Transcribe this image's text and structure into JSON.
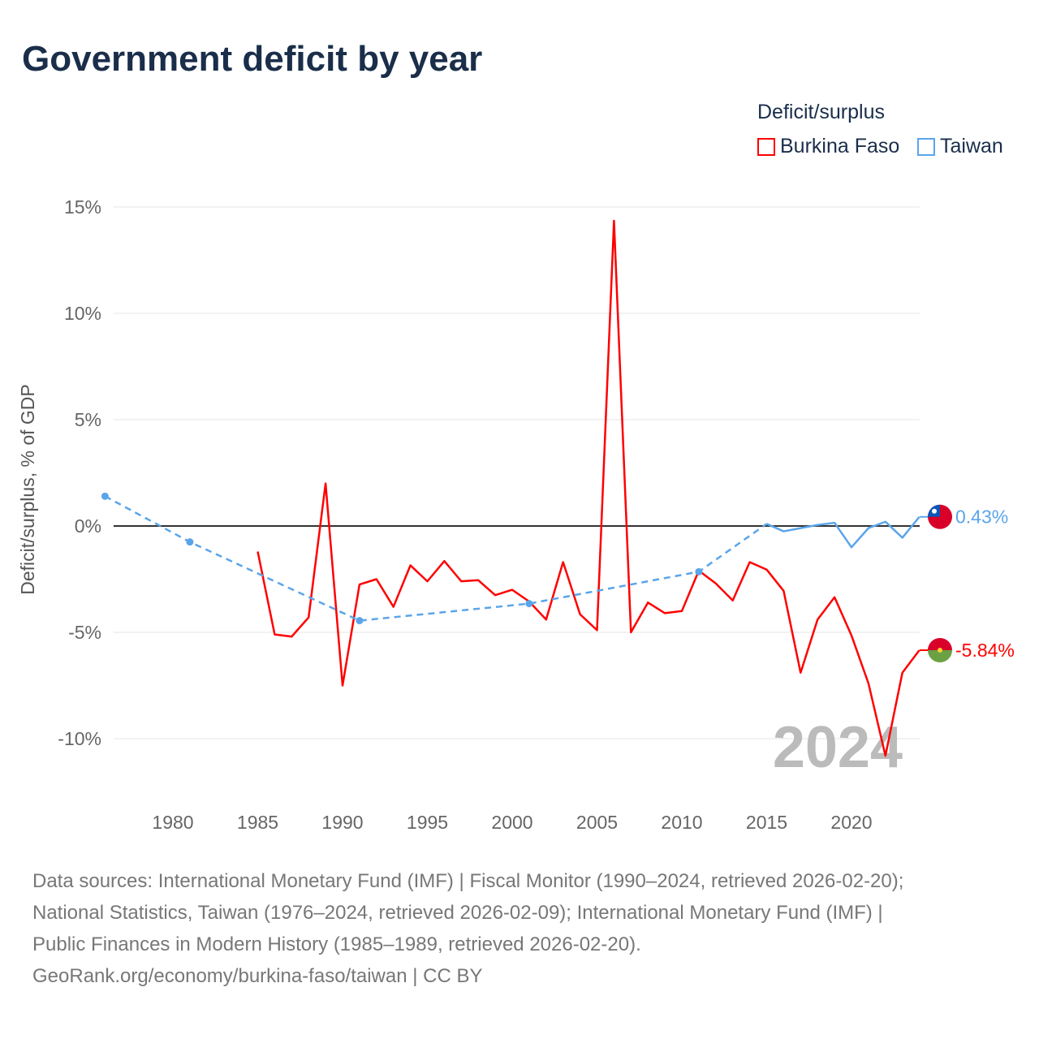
{
  "title": "Government deficit by year",
  "legend": {
    "title": "Deficit/surplus",
    "items": [
      "Burkina Faso",
      "Taiwan"
    ]
  },
  "footer": [
    "Data sources: International Monetary Fund (IMF) | Fiscal Monitor (1990–2024, retrieved 2026-02-20);",
    "National Statistics, Taiwan (1976–2024, retrieved 2026-02-09); International Monetary Fund (IMF) |",
    "Public Finances in Modern History (1985–1989, retrieved 2026-02-20).",
    "GeoRank.org/economy/burkina-faso/taiwan | CC BY"
  ],
  "chart_data": {
    "type": "line",
    "title": "Government deficit by year",
    "ylabel": "Deficit/surplus, % of GDP",
    "xlabel": "",
    "ylim": [
      -12,
      15.5
    ],
    "xlim": [
      1975.5,
      2024
    ],
    "yticks": [
      15,
      10,
      5,
      0,
      -5,
      -10
    ],
    "ytick_labels": [
      "15%",
      "10%",
      "5%",
      "0%",
      "-5%",
      "-10%"
    ],
    "xticks": [
      1980,
      1985,
      1990,
      1995,
      2000,
      2005,
      2010,
      2015,
      2020
    ],
    "year_label": "2024",
    "series": [
      {
        "name": "Burkina Faso",
        "color": "#ff0000",
        "end_label": "-5.84%",
        "x": [
          1985,
          1986,
          1987,
          1988,
          1989,
          1990,
          1991,
          1992,
          1993,
          1994,
          1995,
          1996,
          1997,
          1998,
          1999,
          2000,
          2001,
          2002,
          2003,
          2004,
          2005,
          2006,
          2007,
          2008,
          2009,
          2010,
          2011,
          2012,
          2013,
          2014,
          2015,
          2016,
          2017,
          2018,
          2019,
          2020,
          2021,
          2022,
          2023,
          2024
        ],
        "y": [
          -1.2,
          -5.1,
          -5.2,
          -4.3,
          2.0,
          -7.5,
          -2.75,
          -2.5,
          -3.8,
          -1.85,
          -2.6,
          -1.65,
          -2.6,
          -2.55,
          -3.25,
          -3.0,
          -3.55,
          -4.4,
          -1.7,
          -4.15,
          -4.9,
          14.35,
          -5.0,
          -3.6,
          -4.1,
          -4.0,
          -2.1,
          -2.7,
          -3.5,
          -1.7,
          -2.05,
          -3.05,
          -6.9,
          -4.4,
          -3.35,
          -5.15,
          -7.4,
          -10.8,
          -6.9,
          -5.84
        ]
      },
      {
        "name": "Taiwan",
        "color": "#5aa5ea",
        "end_label": "0.43%",
        "sparse_x": [
          1976,
          1981,
          1991,
          2001,
          2011,
          2015
        ],
        "sparse_y": [
          1.4,
          -0.75,
          -4.45,
          -3.65,
          -2.15,
          0.1
        ],
        "x": [
          2015,
          2016,
          2017,
          2018,
          2019,
          2020,
          2021,
          2022,
          2023,
          2024
        ],
        "y": [
          0.1,
          -0.25,
          -0.1,
          0.05,
          0.15,
          -1.0,
          -0.1,
          0.2,
          -0.55,
          0.43
        ]
      }
    ]
  }
}
